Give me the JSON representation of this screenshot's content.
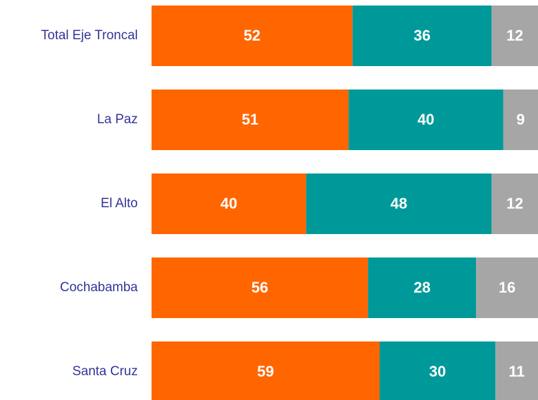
{
  "chart_data": {
    "type": "stacked-bar-horizontal",
    "categories": [
      "Total Eje Troncal",
      "La Paz",
      "El Alto",
      "Cochabamba",
      "Santa Cruz"
    ],
    "series": [
      {
        "color": "#ff6600",
        "values": [
          52,
          51,
          40,
          56,
          59
        ]
      },
      {
        "color": "#009999",
        "values": [
          36,
          40,
          48,
          28,
          30
        ]
      },
      {
        "color": "#a6a6a6",
        "values": [
          12,
          9,
          12,
          16,
          11
        ]
      }
    ]
  }
}
